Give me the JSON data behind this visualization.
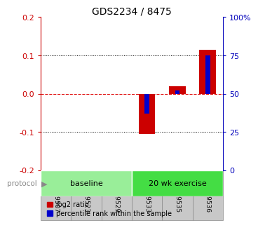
{
  "title": "GDS2234 / 8475",
  "samples": [
    "GSM29507",
    "GSM29523",
    "GSM29529",
    "GSM29533",
    "GSM29535",
    "GSM29536"
  ],
  "log2_ratio": [
    0.0,
    0.0,
    0.0,
    -0.105,
    0.02,
    0.115
  ],
  "percentile_rank": [
    50.0,
    50.0,
    50.0,
    37.0,
    52.0,
    75.0
  ],
  "ylim_left": [
    -0.2,
    0.2
  ],
  "ylim_right": [
    0,
    100
  ],
  "yticks_left": [
    -0.2,
    -0.1,
    0.0,
    0.1,
    0.2
  ],
  "yticks_right": [
    0,
    25,
    50,
    75,
    100
  ],
  "ytick_labels_right": [
    "0",
    "25",
    "50",
    "75",
    "100%"
  ],
  "red_color": "#cc0000",
  "blue_color": "#0000cc",
  "baseline_color": "#99ee99",
  "exercise_color": "#44dd44",
  "hline_0_color": "#dd0000",
  "dotted_color": "#000000",
  "bg_color": "#ffffff",
  "left_axis_color": "#cc0000",
  "right_axis_color": "#0000bb",
  "gray_box_color": "#c8c8c8",
  "gray_box_edge": "#888888"
}
